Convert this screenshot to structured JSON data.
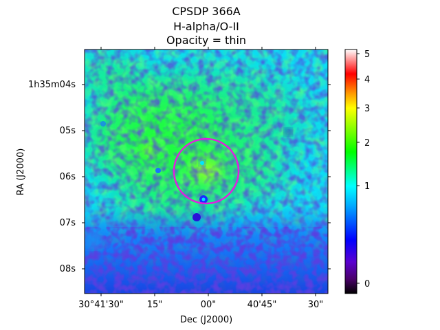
{
  "chart_data": {
    "type": "heatmap",
    "title": [
      "CPSDP 366A",
      "H-alpha/O-II",
      "Opacity = thin"
    ],
    "xlabel": "Dec (J2000)",
    "ylabel": "RA (J2000)",
    "x_ticks": [
      "30°41'30\"",
      "15\"",
      "00\"",
      "40'45\"",
      "30\""
    ],
    "y_ticks": [
      "1h35m04s",
      "05s",
      "06s",
      "07s",
      "08s"
    ],
    "colorbar": {
      "ticks": [
        "0",
        "1",
        "2",
        "3",
        "4",
        "5"
      ],
      "colormap": [
        "#000000",
        "#5a00a8",
        "#0000ff",
        "#00ffff",
        "#00ff00",
        "#ffff00",
        "#ff8000",
        "#ff0000",
        "#ffffff"
      ]
    },
    "aperture": {
      "shape": "circle",
      "color": "#e020e0",
      "location": "centered near 00\" Dec, 06s RA"
    }
  }
}
